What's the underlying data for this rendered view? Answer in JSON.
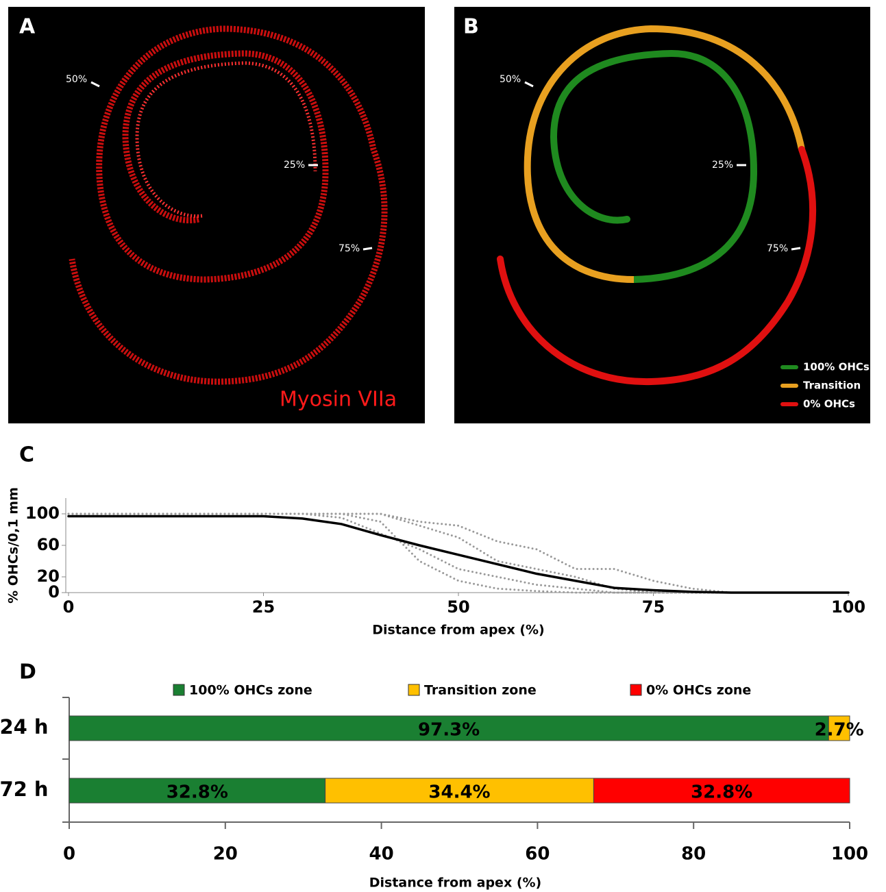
{
  "panel_a": {
    "label": "A",
    "marks": [
      "50%",
      "25%",
      "75%"
    ],
    "stain": "Myosin VIIa"
  },
  "panel_b": {
    "label": "B",
    "marks": [
      "50%",
      "25%",
      "75%"
    ],
    "legend": [
      "100% OHCs",
      "Transition",
      "0% OHCs"
    ]
  },
  "chart_data": [
    {
      "type": "line",
      "label": "C",
      "ylabel": "% OHCs/0,1 mm",
      "xlabel": "Distance from apex (%)",
      "x": [
        0,
        5,
        10,
        15,
        20,
        25,
        30,
        35,
        40,
        45,
        50,
        55,
        60,
        65,
        70,
        75,
        80,
        85,
        90,
        95,
        100
      ],
      "series": [
        {
          "color": "#999999",
          "style": "dotted",
          "values": [
            100,
            100,
            100,
            100,
            100,
            100,
            100,
            100,
            90,
            40,
            15,
            5,
            2,
            0,
            0,
            0,
            0,
            0,
            0,
            0,
            0
          ]
        },
        {
          "color": "#999999",
          "style": "dotted",
          "values": [
            100,
            100,
            100,
            100,
            100,
            100,
            100,
            100,
            100,
            85,
            70,
            40,
            30,
            20,
            5,
            0,
            0,
            0,
            0,
            0,
            0
          ]
        },
        {
          "color": "#999999",
          "style": "dotted",
          "values": [
            100,
            100,
            100,
            100,
            100,
            100,
            100,
            100,
            100,
            90,
            85,
            65,
            55,
            30,
            30,
            15,
            5,
            0,
            0,
            0,
            0
          ]
        },
        {
          "color": "#999999",
          "style": "dotted",
          "values": [
            100,
            100,
            100,
            100,
            100,
            100,
            100,
            95,
            75,
            55,
            30,
            20,
            10,
            5,
            0,
            0,
            0,
            0,
            0,
            0,
            0
          ]
        },
        {
          "color": "#000000",
          "style": "solid",
          "values": [
            97,
            97,
            97,
            97,
            97,
            97,
            94,
            87,
            73,
            60,
            48,
            36,
            24,
            15,
            6,
            3,
            1,
            0,
            0,
            0,
            0
          ]
        }
      ],
      "xlim": [
        0,
        100
      ],
      "xticks": [
        0,
        25,
        50,
        75,
        100
      ],
      "ylim": [
        0,
        120
      ],
      "yticks": [
        0,
        20,
        60,
        100
      ]
    },
    {
      "type": "bar",
      "label": "D",
      "orientation": "horizontal",
      "stacked": true,
      "xlabel": "Distance from apex (%)",
      "categories": [
        "24 h",
        "72 h"
      ],
      "series": [
        {
          "name": "100% OHCs zone",
          "color": "#1a7f32",
          "values": [
            97.3,
            32.8
          ],
          "value_labels": [
            "97.3%",
            "32.8%"
          ]
        },
        {
          "name": "Transition zone",
          "color": "#ffc000",
          "values": [
            2.7,
            34.4
          ],
          "value_labels": [
            "2.7%",
            "34.4%"
          ]
        },
        {
          "name": "0% OHCs zone",
          "color": "#ff0000",
          "values": [
            0,
            32.8
          ],
          "value_labels": [
            null,
            "32.8%"
          ]
        }
      ],
      "xlim": [
        0,
        100
      ],
      "xticks": [
        0,
        20,
        40,
        60,
        80,
        100
      ]
    }
  ]
}
